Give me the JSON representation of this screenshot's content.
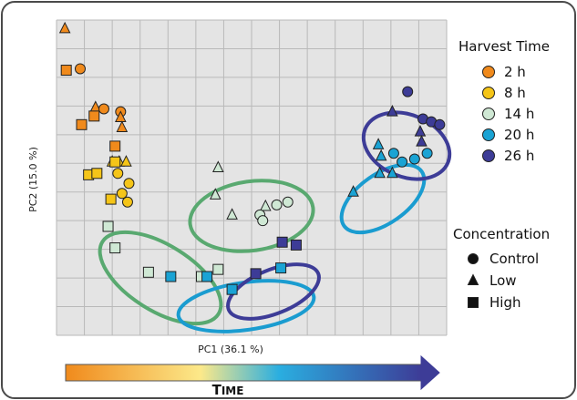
{
  "chart_data": {
    "type": "scatter",
    "xlabel": "PC1 (36.1 %)",
    "ylabel": "PC2 (15.0 %)",
    "xlim": [
      0,
      14
    ],
    "ylim": [
      0,
      11
    ],
    "grid": true,
    "legend_placement": "right",
    "legend_color_title": "Harvest Time",
    "legend_shape_title": "Concentration",
    "time_arrow_label": "Time",
    "series": [
      {
        "name": "2 h",
        "color": "#f08a1c",
        "points": [
          {
            "x": 0.3,
            "y": 10.7,
            "marker": "triangle"
          },
          {
            "x": 0.35,
            "y": 9.25,
            "marker": "square"
          },
          {
            "x": 0.85,
            "y": 9.3,
            "marker": "circle"
          },
          {
            "x": 1.4,
            "y": 7.95,
            "marker": "triangle"
          },
          {
            "x": 1.7,
            "y": 7.9,
            "marker": "circle"
          },
          {
            "x": 1.35,
            "y": 7.65,
            "marker": "square"
          },
          {
            "x": 0.9,
            "y": 7.35,
            "marker": "square"
          },
          {
            "x": 2.3,
            "y": 7.8,
            "marker": "circle"
          },
          {
            "x": 2.3,
            "y": 7.6,
            "marker": "triangle"
          },
          {
            "x": 2.35,
            "y": 7.25,
            "marker": "triangle"
          },
          {
            "x": 2.1,
            "y": 6.6,
            "marker": "square"
          }
        ]
      },
      {
        "name": "8 h",
        "color": "#f5c518",
        "points": [
          {
            "x": 2.0,
            "y": 6.05,
            "marker": "triangle"
          },
          {
            "x": 2.25,
            "y": 6.05,
            "marker": "triangle"
          },
          {
            "x": 2.5,
            "y": 6.05,
            "marker": "triangle"
          },
          {
            "x": 2.1,
            "y": 6.05,
            "marker": "square"
          },
          {
            "x": 2.2,
            "y": 5.65,
            "marker": "circle"
          },
          {
            "x": 2.6,
            "y": 5.3,
            "marker": "circle"
          },
          {
            "x": 2.35,
            "y": 4.95,
            "marker": "circle"
          },
          {
            "x": 2.55,
            "y": 4.65,
            "marker": "circle"
          },
          {
            "x": 1.95,
            "y": 4.75,
            "marker": "square"
          },
          {
            "x": 1.15,
            "y": 5.6,
            "marker": "square"
          },
          {
            "x": 1.45,
            "y": 5.65,
            "marker": "square"
          }
        ]
      },
      {
        "name": "14 h",
        "color": "#cfe8d4",
        "points": [
          {
            "x": 5.8,
            "y": 5.85,
            "marker": "triangle"
          },
          {
            "x": 5.7,
            "y": 4.9,
            "marker": "triangle"
          },
          {
            "x": 6.3,
            "y": 4.2,
            "marker": "triangle"
          },
          {
            "x": 7.5,
            "y": 4.5,
            "marker": "triangle"
          },
          {
            "x": 7.3,
            "y": 4.2,
            "marker": "circle"
          },
          {
            "x": 7.4,
            "y": 4.0,
            "marker": "circle"
          },
          {
            "x": 7.9,
            "y": 4.55,
            "marker": "circle"
          },
          {
            "x": 8.3,
            "y": 4.65,
            "marker": "circle"
          },
          {
            "x": 1.85,
            "y": 3.8,
            "marker": "square"
          },
          {
            "x": 2.1,
            "y": 3.05,
            "marker": "square"
          },
          {
            "x": 3.3,
            "y": 2.2,
            "marker": "square"
          },
          {
            "x": 5.2,
            "y": 2.05,
            "marker": "square"
          },
          {
            "x": 5.8,
            "y": 2.3,
            "marker": "square"
          }
        ]
      },
      {
        "name": "20 h",
        "color": "#1aa3d4",
        "points": [
          {
            "x": 12.1,
            "y": 6.35,
            "marker": "circle"
          },
          {
            "x": 12.4,
            "y": 6.05,
            "marker": "circle"
          },
          {
            "x": 12.85,
            "y": 6.15,
            "marker": "circle"
          },
          {
            "x": 13.3,
            "y": 6.35,
            "marker": "circle"
          },
          {
            "x": 11.55,
            "y": 6.65,
            "marker": "triangle"
          },
          {
            "x": 11.65,
            "y": 6.25,
            "marker": "triangle"
          },
          {
            "x": 11.6,
            "y": 5.65,
            "marker": "triangle"
          },
          {
            "x": 12.05,
            "y": 5.65,
            "marker": "triangle"
          },
          {
            "x": 10.65,
            "y": 5.0,
            "marker": "triangle"
          },
          {
            "x": 4.1,
            "y": 2.05,
            "marker": "square"
          },
          {
            "x": 5.4,
            "y": 2.05,
            "marker": "square"
          },
          {
            "x": 6.3,
            "y": 1.6,
            "marker": "square"
          },
          {
            "x": 8.05,
            "y": 2.35,
            "marker": "square"
          }
        ]
      },
      {
        "name": "26 h",
        "color": "#3d3c97",
        "points": [
          {
            "x": 12.6,
            "y": 8.5,
            "marker": "circle"
          },
          {
            "x": 13.15,
            "y": 7.55,
            "marker": "circle"
          },
          {
            "x": 13.45,
            "y": 7.45,
            "marker": "circle"
          },
          {
            "x": 13.75,
            "y": 7.35,
            "marker": "circle"
          },
          {
            "x": 12.05,
            "y": 7.8,
            "marker": "triangle"
          },
          {
            "x": 13.05,
            "y": 7.1,
            "marker": "triangle"
          },
          {
            "x": 13.1,
            "y": 6.75,
            "marker": "triangle"
          },
          {
            "x": 8.1,
            "y": 3.25,
            "marker": "square"
          },
          {
            "x": 8.6,
            "y": 3.15,
            "marker": "square"
          },
          {
            "x": 7.15,
            "y": 2.15,
            "marker": "square"
          }
        ]
      }
    ]
  },
  "colors": {
    "frame_border": "#4a4a4a",
    "plot_background": "#e4e4e4",
    "grid": "#b9b9b9",
    "ellipse_14h": "#59a970",
    "ellipse_20h": "#1a9cd0",
    "ellipse_26h": "#3d3c97",
    "arrow_start": "#f08a1c",
    "arrow_mid": "#fce98a",
    "arrow_mid2": "#2aaee0",
    "arrow_end": "#3d3c97"
  },
  "legend": {
    "color_entries": [
      "2 h",
      "8 h",
      "14 h",
      "20 h",
      "26 h"
    ],
    "shape_entries": [
      {
        "label": "Control",
        "marker": "circle"
      },
      {
        "label": "Low",
        "marker": "triangle"
      },
      {
        "label": "High",
        "marker": "square"
      }
    ]
  },
  "groupings": [
    {
      "series": "14 h",
      "color_key": "ellipse_14h"
    },
    {
      "series": "20 h",
      "color_key": "ellipse_20h"
    },
    {
      "series": "26 h",
      "color_key": "ellipse_26h"
    }
  ]
}
